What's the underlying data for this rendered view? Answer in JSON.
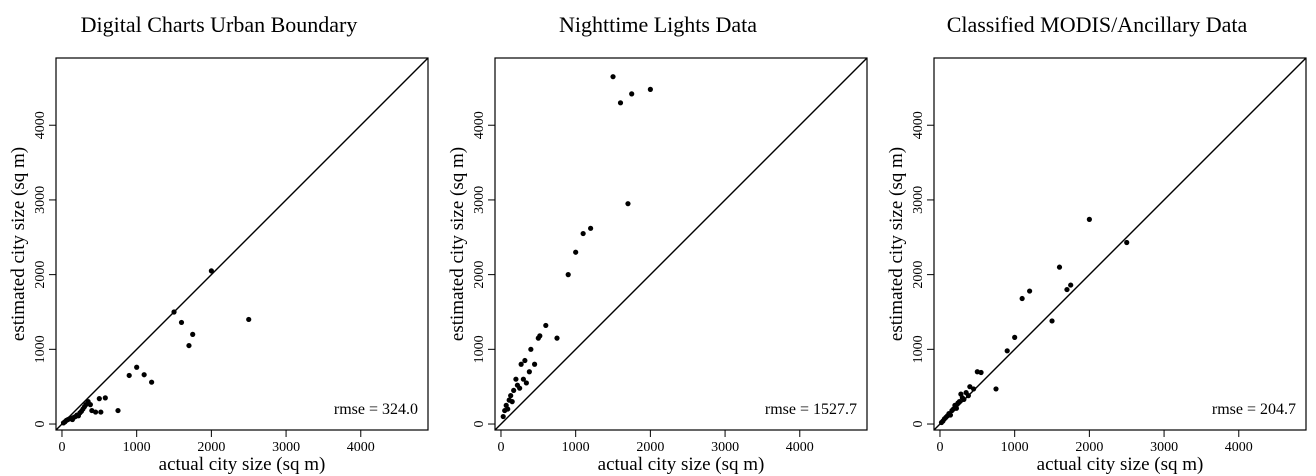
{
  "chart_data": [
    {
      "type": "scatter",
      "title": "Digital Charts Urban Boundary",
      "xlabel": "actual city size (sq m)",
      "ylabel": "estimated city size (sq m)",
      "xlim": [
        -80,
        4900
      ],
      "ylim": [
        -80,
        4900
      ],
      "xticks": [
        0,
        1000,
        2000,
        3000,
        4000
      ],
      "yticks": [
        0,
        1000,
        2000,
        3000,
        4000
      ],
      "annotation": "rmse = 324.0",
      "reference_line": "y = x",
      "points": [
        [
          20,
          15
        ],
        [
          40,
          30
        ],
        [
          60,
          50
        ],
        [
          80,
          60
        ],
        [
          100,
          70
        ],
        [
          120,
          80
        ],
        [
          140,
          60
        ],
        [
          160,
          90
        ],
        [
          180,
          100
        ],
        [
          200,
          120
        ],
        [
          220,
          110
        ],
        [
          240,
          150
        ],
        [
          260,
          170
        ],
        [
          280,
          200
        ],
        [
          300,
          230
        ],
        [
          320,
          260
        ],
        [
          350,
          300
        ],
        [
          380,
          260
        ],
        [
          400,
          180
        ],
        [
          450,
          160
        ],
        [
          500,
          340
        ],
        [
          520,
          160
        ],
        [
          580,
          350
        ],
        [
          750,
          180
        ],
        [
          900,
          650
        ],
        [
          1000,
          760
        ],
        [
          1100,
          660
        ],
        [
          1200,
          560
        ],
        [
          1500,
          1500
        ],
        [
          1600,
          1360
        ],
        [
          1700,
          1050
        ],
        [
          1750,
          1200
        ],
        [
          2000,
          2050
        ],
        [
          2500,
          1400
        ]
      ]
    },
    {
      "type": "scatter",
      "title": "Nighttime Lights Data",
      "xlabel": "actual city size (sq m)",
      "ylabel": "estimated city size (sq m)",
      "xlim": [
        -80,
        4900
      ],
      "ylim": [
        -80,
        4900
      ],
      "xticks": [
        0,
        1000,
        2000,
        3000,
        4000
      ],
      "yticks": [
        0,
        1000,
        2000,
        3000,
        4000
      ],
      "annotation": "rmse = 1527.7",
      "reference_line": "y = x",
      "points": [
        [
          30,
          100
        ],
        [
          50,
          180
        ],
        [
          70,
          250
        ],
        [
          90,
          200
        ],
        [
          110,
          320
        ],
        [
          130,
          380
        ],
        [
          150,
          300
        ],
        [
          170,
          450
        ],
        [
          200,
          600
        ],
        [
          220,
          520
        ],
        [
          250,
          480
        ],
        [
          270,
          800
        ],
        [
          300,
          600
        ],
        [
          320,
          850
        ],
        [
          340,
          550
        ],
        [
          380,
          700
        ],
        [
          400,
          1000
        ],
        [
          450,
          800
        ],
        [
          500,
          1150
        ],
        [
          520,
          1180
        ],
        [
          600,
          1320
        ],
        [
          750,
          1150
        ],
        [
          900,
          2000
        ],
        [
          1000,
          2300
        ],
        [
          1100,
          2550
        ],
        [
          1200,
          2620
        ],
        [
          1500,
          4650
        ],
        [
          1600,
          4300
        ],
        [
          1700,
          2950
        ],
        [
          1750,
          4420
        ],
        [
          2000,
          4480
        ]
      ]
    },
    {
      "type": "scatter",
      "title": "Classified MODIS/Ancillary Data",
      "xlabel": "actual city size (sq m)",
      "ylabel": "estimated city size (sq m)",
      "xlim": [
        -80,
        4900
      ],
      "ylim": [
        -80,
        4900
      ],
      "xticks": [
        0,
        1000,
        2000,
        3000,
        4000
      ],
      "yticks": [
        0,
        1000,
        2000,
        3000,
        4000
      ],
      "annotation": "rmse = 204.7",
      "reference_line": "y = x",
      "points": [
        [
          20,
          20
        ],
        [
          40,
          40
        ],
        [
          60,
          70
        ],
        [
          80,
          90
        ],
        [
          100,
          110
        ],
        [
          120,
          140
        ],
        [
          140,
          120
        ],
        [
          160,
          180
        ],
        [
          180,
          200
        ],
        [
          200,
          250
        ],
        [
          220,
          210
        ],
        [
          240,
          280
        ],
        [
          260,
          300
        ],
        [
          280,
          400
        ],
        [
          300,
          350
        ],
        [
          320,
          330
        ],
        [
          350,
          420
        ],
        [
          380,
          380
        ],
        [
          400,
          500
        ],
        [
          450,
          470
        ],
        [
          500,
          700
        ],
        [
          550,
          690
        ],
        [
          750,
          470
        ],
        [
          900,
          980
        ],
        [
          1000,
          1160
        ],
        [
          1100,
          1680
        ],
        [
          1200,
          1780
        ],
        [
          1500,
          1380
        ],
        [
          1600,
          2100
        ],
        [
          1700,
          1800
        ],
        [
          1750,
          1860
        ],
        [
          2000,
          2740
        ],
        [
          2500,
          2430
        ]
      ]
    }
  ]
}
